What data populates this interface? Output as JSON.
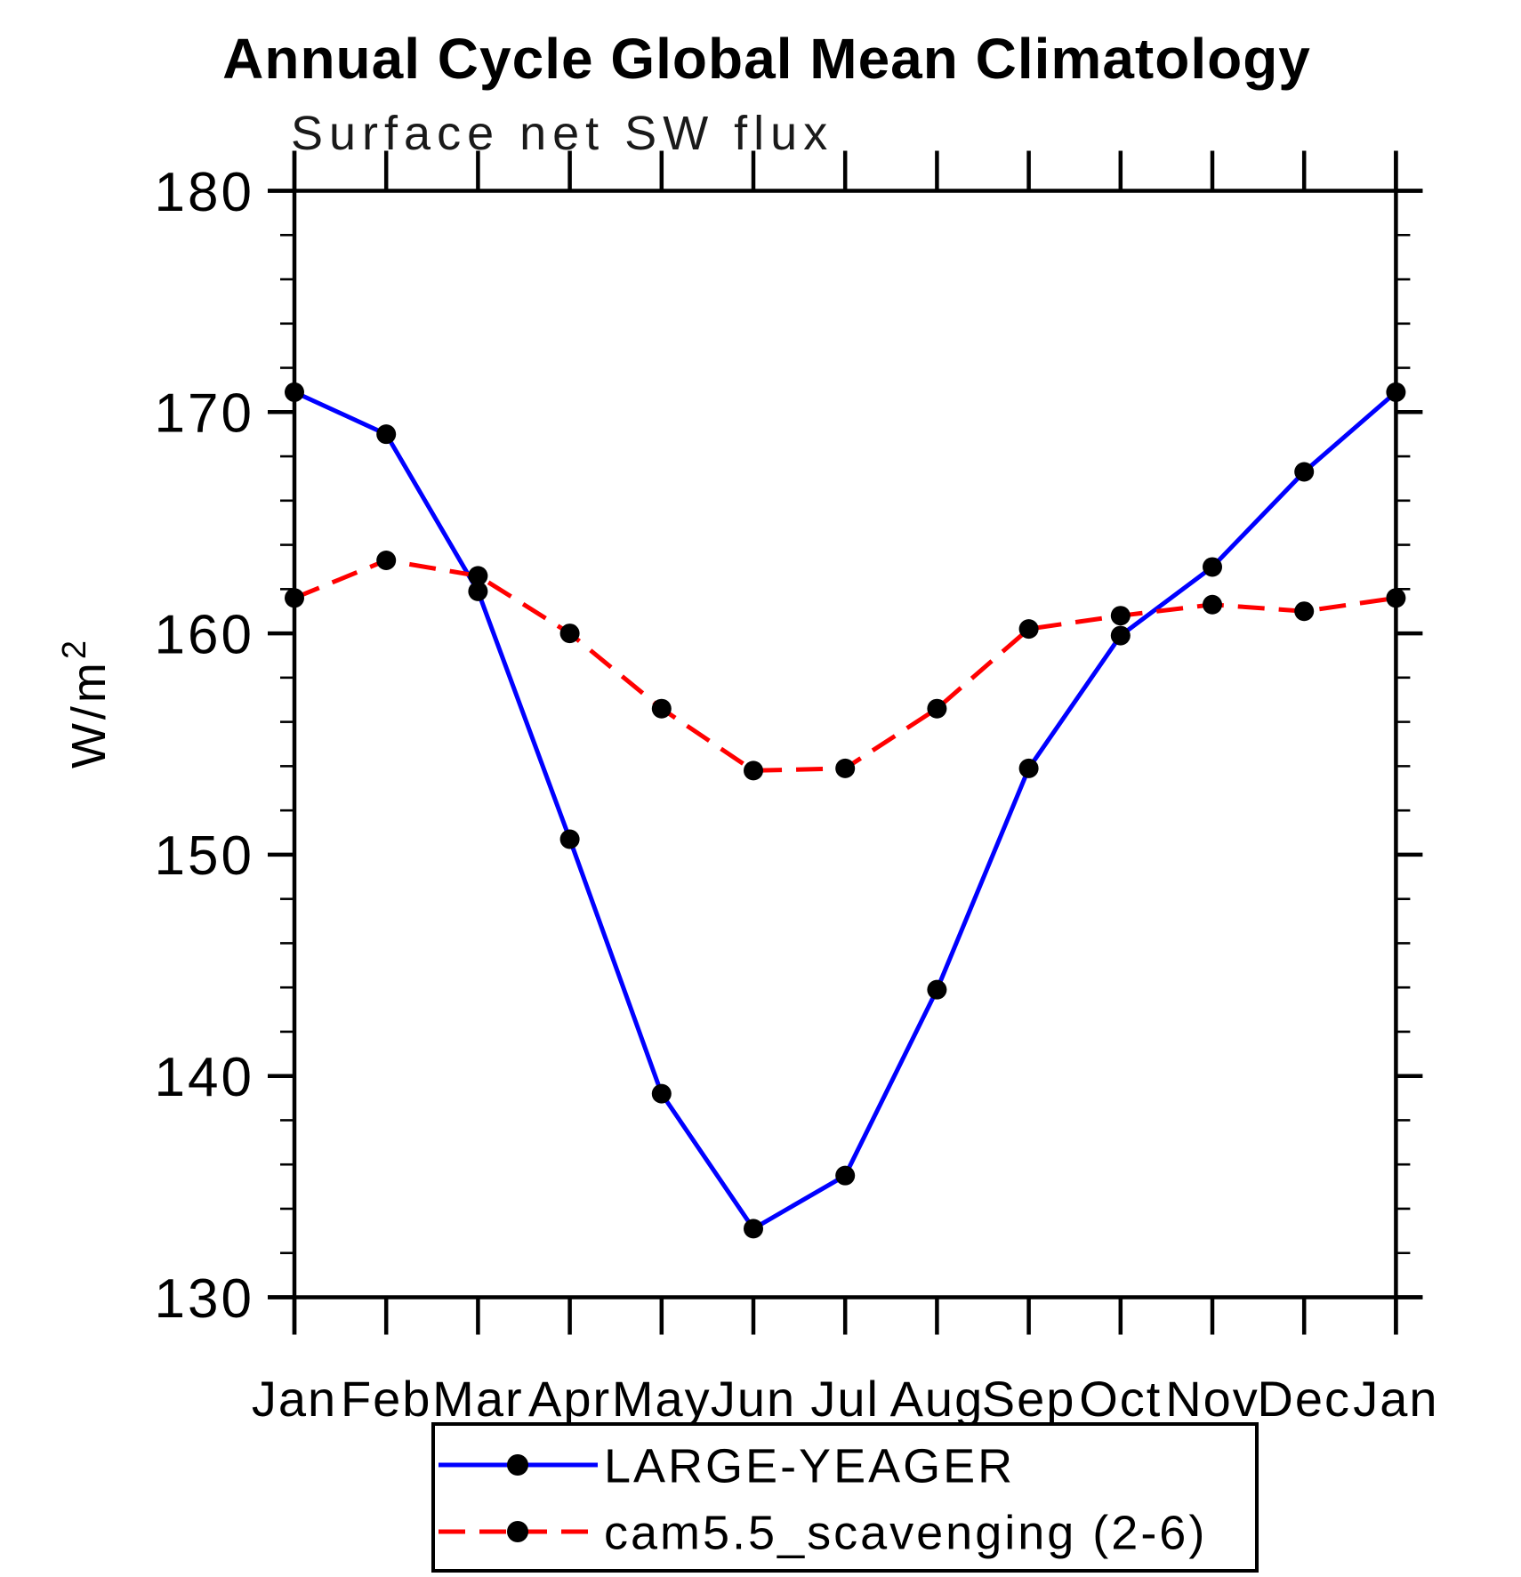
{
  "chart_data": {
    "type": "line",
    "title": "Annual Cycle Global Mean Climatology",
    "subtitle": "Surface net SW flux",
    "ylabel": "W/m²",
    "ylabel_parts": {
      "base": "W/m",
      "sup": "2"
    },
    "xlabel": "",
    "categories": [
      "Jan",
      "Feb",
      "Mar",
      "Apr",
      "May",
      "Jun",
      "Jul",
      "Aug",
      "Sep",
      "Oct",
      "Nov",
      "Dec",
      "Jan"
    ],
    "series": [
      {
        "name": "LARGE-YEAGER",
        "color": "#0000ff",
        "line_style": "solid",
        "marker": "filled-circle",
        "marker_color": "#000000",
        "values": [
          170.9,
          169.0,
          161.9,
          150.7,
          139.2,
          133.1,
          135.5,
          143.9,
          153.9,
          159.9,
          163.0,
          167.3,
          170.9
        ]
      },
      {
        "name": "cam5.5_scavenging (2-6)",
        "color": "#ff0000",
        "line_style": "dashed",
        "marker": "filled-circle",
        "marker_color": "#000000",
        "values": [
          161.6,
          163.3,
          162.6,
          160.0,
          156.6,
          153.8,
          153.9,
          156.6,
          160.2,
          160.8,
          161.3,
          161.0,
          161.6
        ]
      }
    ],
    "ylim": [
      130,
      180
    ],
    "ytick_major_step": 10,
    "ytick_minor_step": 2,
    "ytick_labels": [
      "130",
      "140",
      "150",
      "160",
      "170",
      "180"
    ],
    "grid": "off",
    "legend_position": "bottom",
    "frame_color": "#000000",
    "background_color": "#ffffff"
  }
}
